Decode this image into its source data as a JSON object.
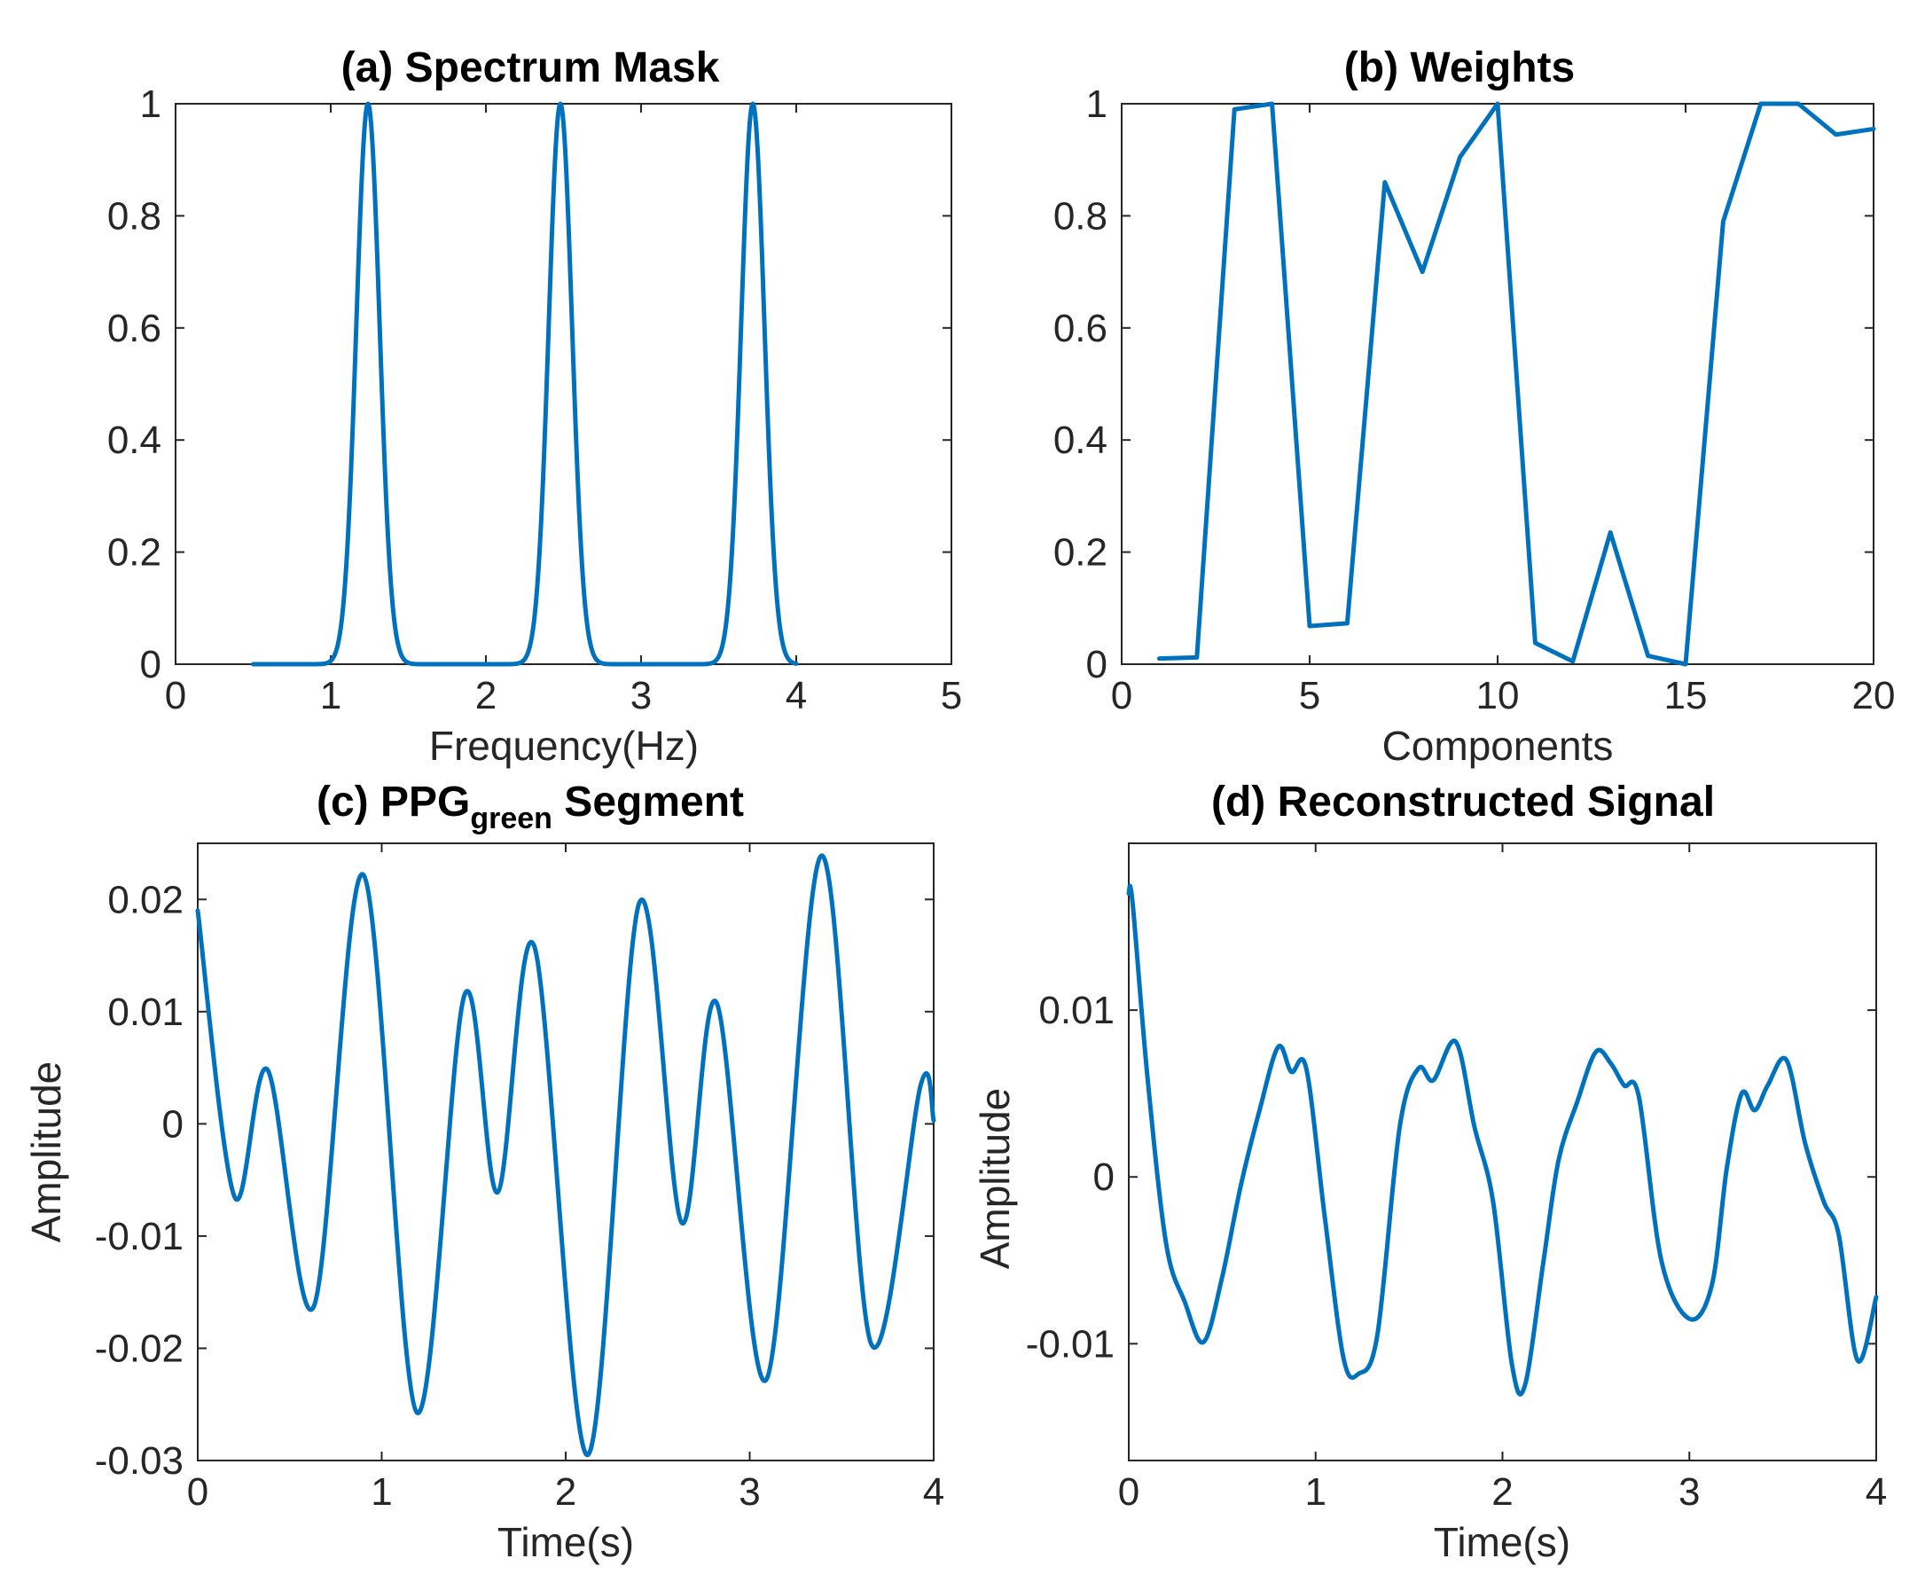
{
  "figure": {
    "series_color": "#0072BD"
  },
  "chart_data": [
    {
      "id": "a",
      "type": "line",
      "title_prefix": "(a)",
      "title": "Spectrum Mask",
      "xlabel": "Frequency(Hz)",
      "ylabel": "",
      "xlim": [
        0,
        5
      ],
      "ylim": [
        0,
        1
      ],
      "xticks": [
        0,
        1,
        2,
        3,
        4,
        5
      ],
      "yticks": [
        0,
        0.2,
        0.4,
        0.6,
        0.8,
        1
      ],
      "xtick_labels": [
        "0",
        "1",
        "2",
        "3",
        "4",
        "5"
      ],
      "ytick_labels": [
        "0",
        "0.2",
        "0.4",
        "0.6",
        "0.8",
        "1"
      ],
      "series": [
        {
          "name": "mask",
          "gaussian_peaks": {
            "x_start": 0.5,
            "x_end": 4.0,
            "centers": [
              1.24,
              2.48,
              3.72
            ],
            "sigma": 0.075
          }
        }
      ]
    },
    {
      "id": "b",
      "type": "line",
      "title_prefix": "(b)",
      "title": "Weights",
      "xlabel": "Components",
      "ylabel": "",
      "xlim": [
        0,
        20
      ],
      "ylim": [
        0,
        1
      ],
      "xticks": [
        0,
        5,
        10,
        15,
        20
      ],
      "yticks": [
        0,
        0.2,
        0.4,
        0.6,
        0.8,
        1
      ],
      "xtick_labels": [
        "0",
        "5",
        "10",
        "15",
        "20"
      ],
      "ytick_labels": [
        "0",
        "0.2",
        "0.4",
        "0.6",
        "0.8",
        "1"
      ],
      "series": [
        {
          "name": "weights",
          "x": [
            1,
            2,
            3,
            4,
            5,
            6,
            7,
            8,
            9,
            10,
            11,
            12,
            13,
            14,
            15,
            16,
            17,
            18,
            19,
            20
          ],
          "y": [
            0.01,
            0.012,
            0.99,
            1.0,
            0.068,
            0.073,
            0.86,
            0.7,
            0.905,
            1.0,
            0.038,
            0.005,
            0.235,
            0.015,
            0.0,
            0.79,
            1.0,
            1.0,
            0.945,
            0.955
          ]
        }
      ]
    },
    {
      "id": "c",
      "type": "line",
      "title_prefix": "(c)",
      "title": "PPG",
      "title_subscript": "green",
      "title_suffix": "Segment",
      "xlabel": "Time(s)",
      "ylabel": "Amplitude",
      "xlim": [
        0,
        4
      ],
      "ylim": [
        -0.03,
        0.025
      ],
      "xticks": [
        0,
        1,
        2,
        3,
        4
      ],
      "yticks": [
        -0.03,
        -0.02,
        -0.01,
        0,
        0.01,
        0.02
      ],
      "xtick_labels": [
        "0",
        "1",
        "2",
        "3",
        "4"
      ],
      "ytick_labels": [
        "-0.03",
        "-0.02",
        "-0.01",
        "0",
        "0.01",
        "0.02"
      ],
      "series": [
        {
          "name": "ppg_green",
          "x": [
            0,
            0.2,
            0.38,
            0.63,
            0.9,
            1.19,
            1.45,
            1.63,
            1.83,
            2.12,
            2.4,
            2.63,
            2.82,
            3.09,
            3.39,
            3.66,
            3.93,
            4.0
          ],
          "y": [
            0.019,
            -0.0065,
            0.0048,
            -0.0163,
            0.0222,
            -0.0257,
            0.0115,
            -0.0061,
            0.0158,
            -0.0295,
            0.0197,
            -0.0088,
            0.0108,
            -0.0228,
            0.0239,
            -0.0196,
            0.0035,
            0.0003
          ]
        }
      ]
    },
    {
      "id": "d",
      "type": "line",
      "title_prefix": "(d)",
      "title": "Reconstructed Signal",
      "xlabel": "Time(s)",
      "ylabel": "Amplitude",
      "xlim": [
        0,
        4
      ],
      "ylim": [
        -0.017,
        0.02
      ],
      "xticks": [
        0,
        1,
        2,
        3,
        4
      ],
      "yticks": [
        -0.01,
        0,
        0.01
      ],
      "xtick_labels": [
        "0",
        "1",
        "2",
        "3",
        "4"
      ],
      "ytick_labels": [
        "-0.01",
        "0",
        "0.01"
      ],
      "series": [
        {
          "name": "reconstructed",
          "x": [
            0,
            0.02,
            0.1,
            0.2,
            0.3,
            0.4,
            0.5,
            0.6,
            0.7,
            0.8,
            0.87,
            0.95,
            1.05,
            1.15,
            1.23,
            1.33,
            1.45,
            1.55,
            1.63,
            1.75,
            1.85,
            1.95,
            2.05,
            2.12,
            2.22,
            2.3,
            2.4,
            2.5,
            2.58,
            2.65,
            2.73,
            2.85,
            3.0,
            3.12,
            3.2,
            3.28,
            3.35,
            3.42,
            3.52,
            3.62,
            3.72,
            3.8,
            3.9,
            4.0
          ],
          "y": [
            0.017,
            0.0165,
            0.006,
            -0.004,
            -0.0075,
            -0.0099,
            -0.006,
            -0.0005,
            0.004,
            0.0078,
            0.0063,
            0.0065,
            -0.0025,
            -0.0109,
            -0.0118,
            -0.0095,
            0.003,
            0.0065,
            0.0058,
            0.0081,
            0.003,
            -0.0015,
            -0.0112,
            -0.0125,
            -0.005,
            0.001,
            0.0045,
            0.0075,
            0.0068,
            0.0055,
            0.0048,
            -0.005,
            -0.0085,
            -0.0065,
            0.0005,
            0.005,
            0.004,
            0.0055,
            0.007,
            0.002,
            -0.0015,
            -0.0035,
            -0.011,
            -0.0072
          ]
        }
      ]
    }
  ]
}
